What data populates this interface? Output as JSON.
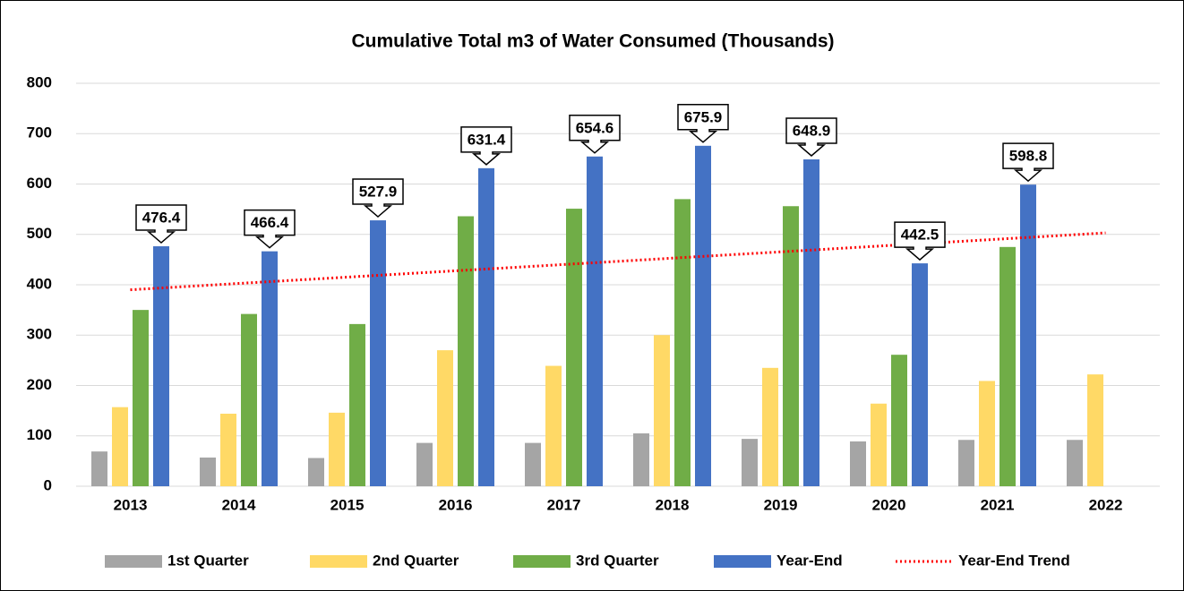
{
  "chart_data": {
    "type": "bar",
    "title": "Cumulative Total m3 of Water Consumed (Thousands)",
    "categories": [
      "2013",
      "2014",
      "2015",
      "2016",
      "2017",
      "2018",
      "2019",
      "2020",
      "2021",
      "2022"
    ],
    "series": [
      {
        "name": "1st Quarter",
        "color": "#a5a5a5",
        "values": [
          69,
          57,
          56,
          86,
          86,
          105,
          94,
          89,
          92,
          92
        ]
      },
      {
        "name": "2nd Quarter",
        "color": "#ffd966",
        "values": [
          157,
          144,
          146,
          270,
          239,
          300,
          235,
          164,
          209,
          222
        ]
      },
      {
        "name": "3rd Quarter",
        "color": "#70ad47",
        "values": [
          350,
          342,
          322,
          536,
          551,
          570,
          556,
          261,
          475,
          null
        ]
      },
      {
        "name": "Year-End",
        "color": "#4472c4",
        "values": [
          476.4,
          466.4,
          527.9,
          631.4,
          654.6,
          675.9,
          648.9,
          442.5,
          598.8,
          null
        ],
        "callouts": true
      }
    ],
    "trend": {
      "name": "Year-End Trend",
      "color": "#ff0000",
      "values": [
        390,
        402.6,
        415.1,
        427.7,
        440.2,
        452.8,
        465.3,
        477.9,
        490.4,
        503
      ]
    },
    "ylim": [
      0,
      800
    ],
    "yticks": [
      0,
      100,
      200,
      300,
      400,
      500,
      600,
      700,
      800
    ],
    "grid": true,
    "legend": "bottom"
  }
}
